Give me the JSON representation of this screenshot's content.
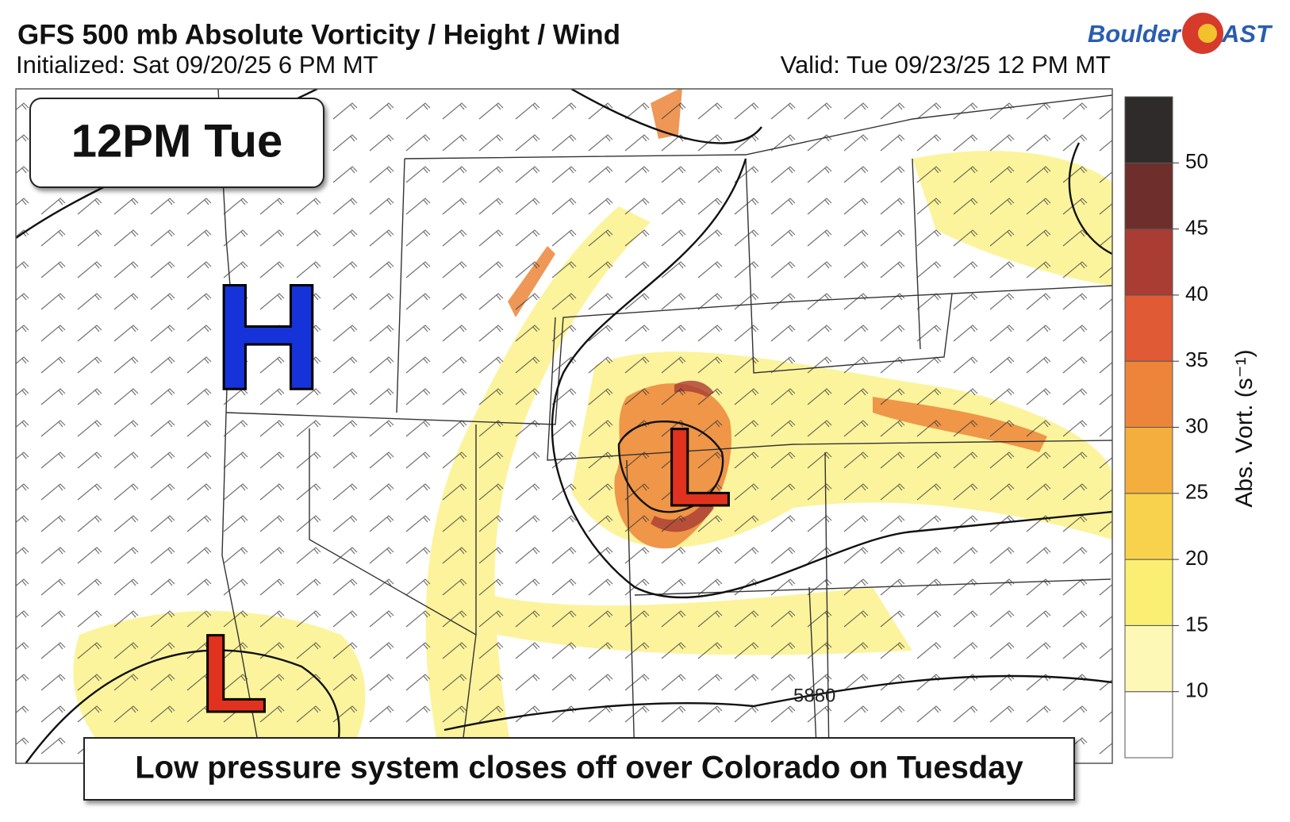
{
  "header": {
    "title": "GFS 500 mb Absolute Vorticity / Height / Wind",
    "initialized": "Initialized: Sat 09/20/25 6 PM MT",
    "valid": "Valid: Tue 09/23/25 12 PM MT",
    "logo_left": "Boulder",
    "logo_right": "AST"
  },
  "badge": "12PM Tue",
  "caption": "Low pressure system closes off over Colorado on Tuesday",
  "map": {
    "high_label": "H",
    "low_labels": [
      "L",
      "L"
    ],
    "contour_label": "5880"
  },
  "colorbar": {
    "label": "Abs. Vort. (s⁻¹)",
    "ticks": [
      10,
      15,
      20,
      25,
      30,
      35,
      40,
      45,
      50
    ],
    "colors": [
      "#ffffff",
      "#fdf8b6",
      "#fbef73",
      "#f8d24c",
      "#f4ae3d",
      "#ec853a",
      "#df5a35",
      "#a93c33",
      "#6e2f2c",
      "#2f2b2b"
    ]
  }
}
